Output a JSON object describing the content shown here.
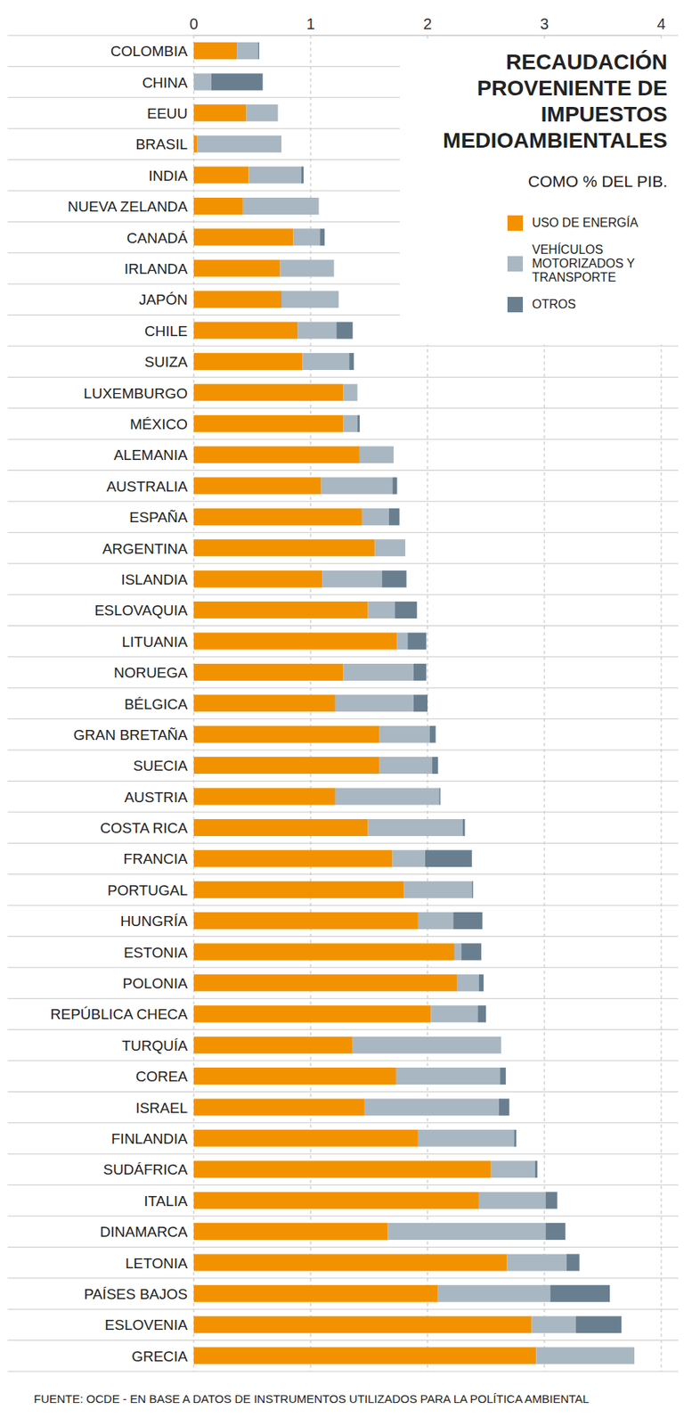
{
  "chart_data": {
    "type": "bar",
    "title": "RECAUDACIÓN PROVENIENTE DE IMPUESTOS MEDIOAMBIENTALES",
    "subtitle": "COMO % DEL PIB.",
    "source": "FUENTE: OCDE - EN BASE A DATOS DE INSTRUMENTOS UTILIZADOS PARA LA POLÍTICA AMBIENTAL",
    "orientation": "horizontal",
    "stacked": true,
    "grid": true,
    "legend": "top-right",
    "xlim": [
      0,
      4
    ],
    "xticks": [
      0,
      1,
      2,
      3,
      4
    ],
    "categories": [
      "COLOMBIA",
      "CHINA",
      "EEUU",
      "BRASIL",
      "INDIA",
      "NUEVA ZELANDA",
      "CANADÁ",
      "IRLANDA",
      "JAPÓN",
      "CHILE",
      "SUIZA",
      "LUXEMBURGO",
      "MÉXICO",
      "ALEMANIA",
      "AUSTRALIA",
      "ESPAÑA",
      "ARGENTINA",
      "ISLANDIA",
      "ESLOVAQUIA",
      "LITUANIA",
      "NORUEGA",
      "BÉLGICA",
      "GRAN BRETAÑA",
      "SUECIA",
      "AUSTRIA",
      "COSTA RICA",
      "FRANCIA",
      "PORTUGAL",
      "HUNGRÍA",
      "ESTONIA",
      "POLONIA",
      "REPÚBLICA CHECA",
      "TURQUÍA",
      "COREA",
      "ISRAEL",
      "FINLANDIA",
      "SUDÁFRICA",
      "ITALIA",
      "DINAMARCA",
      "LETONIA",
      "PAÍSES BAJOS",
      "ESLOVENIA",
      "GRECIA"
    ],
    "series": [
      {
        "name": "USO DE ENERGÍA",
        "color": "#f39200",
        "values": [
          0.37,
          0,
          0.45,
          0.03,
          0.47,
          0.42,
          0.85,
          0.74,
          0.75,
          0.89,
          0.93,
          1.28,
          1.28,
          1.42,
          1.09,
          1.44,
          1.55,
          1.1,
          1.49,
          1.74,
          1.28,
          1.21,
          1.59,
          1.59,
          1.21,
          1.49,
          1.7,
          1.8,
          1.92,
          2.23,
          2.25,
          2.03,
          1.36,
          1.73,
          1.46,
          1.92,
          2.54,
          2.44,
          1.66,
          2.68,
          2.09,
          2.89,
          2.93
        ]
      },
      {
        "name": "VEHÍCULOS MOTORIZADOS Y TRANSPORTE",
        "color": "#a9b7c2",
        "values": [
          0.18,
          0.15,
          0.27,
          0.72,
          0.45,
          0.65,
          0.23,
          0.46,
          0.49,
          0.33,
          0.4,
          0.12,
          0.12,
          0.29,
          0.61,
          0.23,
          0.26,
          0.51,
          0.23,
          0.09,
          0.6,
          0.67,
          0.43,
          0.45,
          0.89,
          0.81,
          0.28,
          0.58,
          0.3,
          0.06,
          0.19,
          0.4,
          1.27,
          0.89,
          1.15,
          0.82,
          0.38,
          0.57,
          1.35,
          0.51,
          0.96,
          0.38,
          0.84
        ]
      },
      {
        "name": "OTROS",
        "color": "#697f90",
        "values": [
          0.01,
          0.44,
          0,
          0,
          0.02,
          0,
          0.04,
          0,
          0,
          0.14,
          0.04,
          0,
          0.02,
          0,
          0.04,
          0.09,
          0,
          0.21,
          0.19,
          0.16,
          0.11,
          0.12,
          0.05,
          0.05,
          0.01,
          0.02,
          0.4,
          0.01,
          0.25,
          0.17,
          0.04,
          0.07,
          0,
          0.05,
          0.09,
          0.02,
          0.02,
          0.1,
          0.17,
          0.11,
          0.51,
          0.39,
          0
        ]
      }
    ]
  }
}
